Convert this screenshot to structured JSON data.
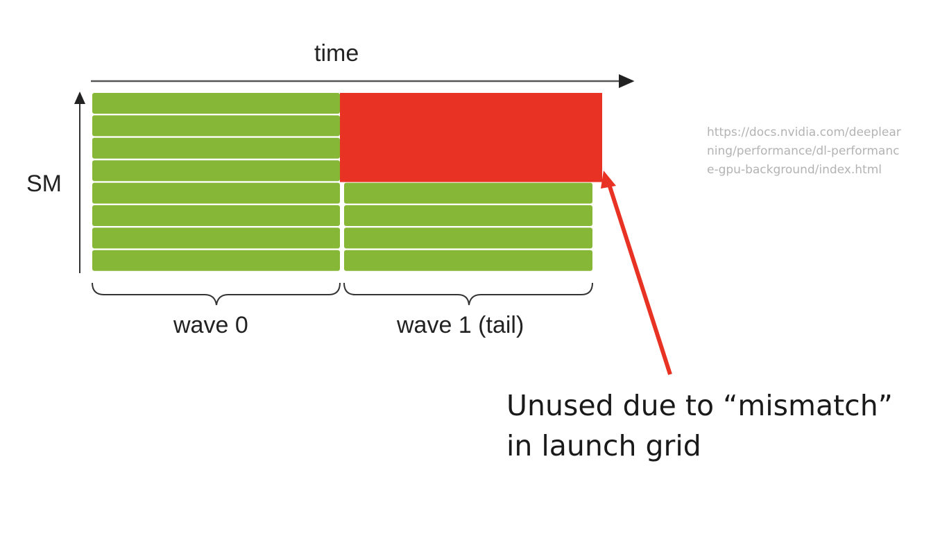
{
  "labels": {
    "x_axis": "time",
    "y_axis": "SM",
    "wave0": "wave 0",
    "wave1": "wave 1 (tail)"
  },
  "source_url": "https://docs.nvidia.com/deeplearning/performance/dl-performance-gpu-background/index.html",
  "annotation": "Unused due to “mismatch” in launch grid",
  "colors": {
    "busy": "#86b737",
    "unused": "#e83324",
    "annotation_arrow": "#e83324"
  },
  "grid": {
    "sm_rows": 8,
    "wave0_rows": 8,
    "wave1_rows": 4,
    "unused_rows": 4
  }
}
